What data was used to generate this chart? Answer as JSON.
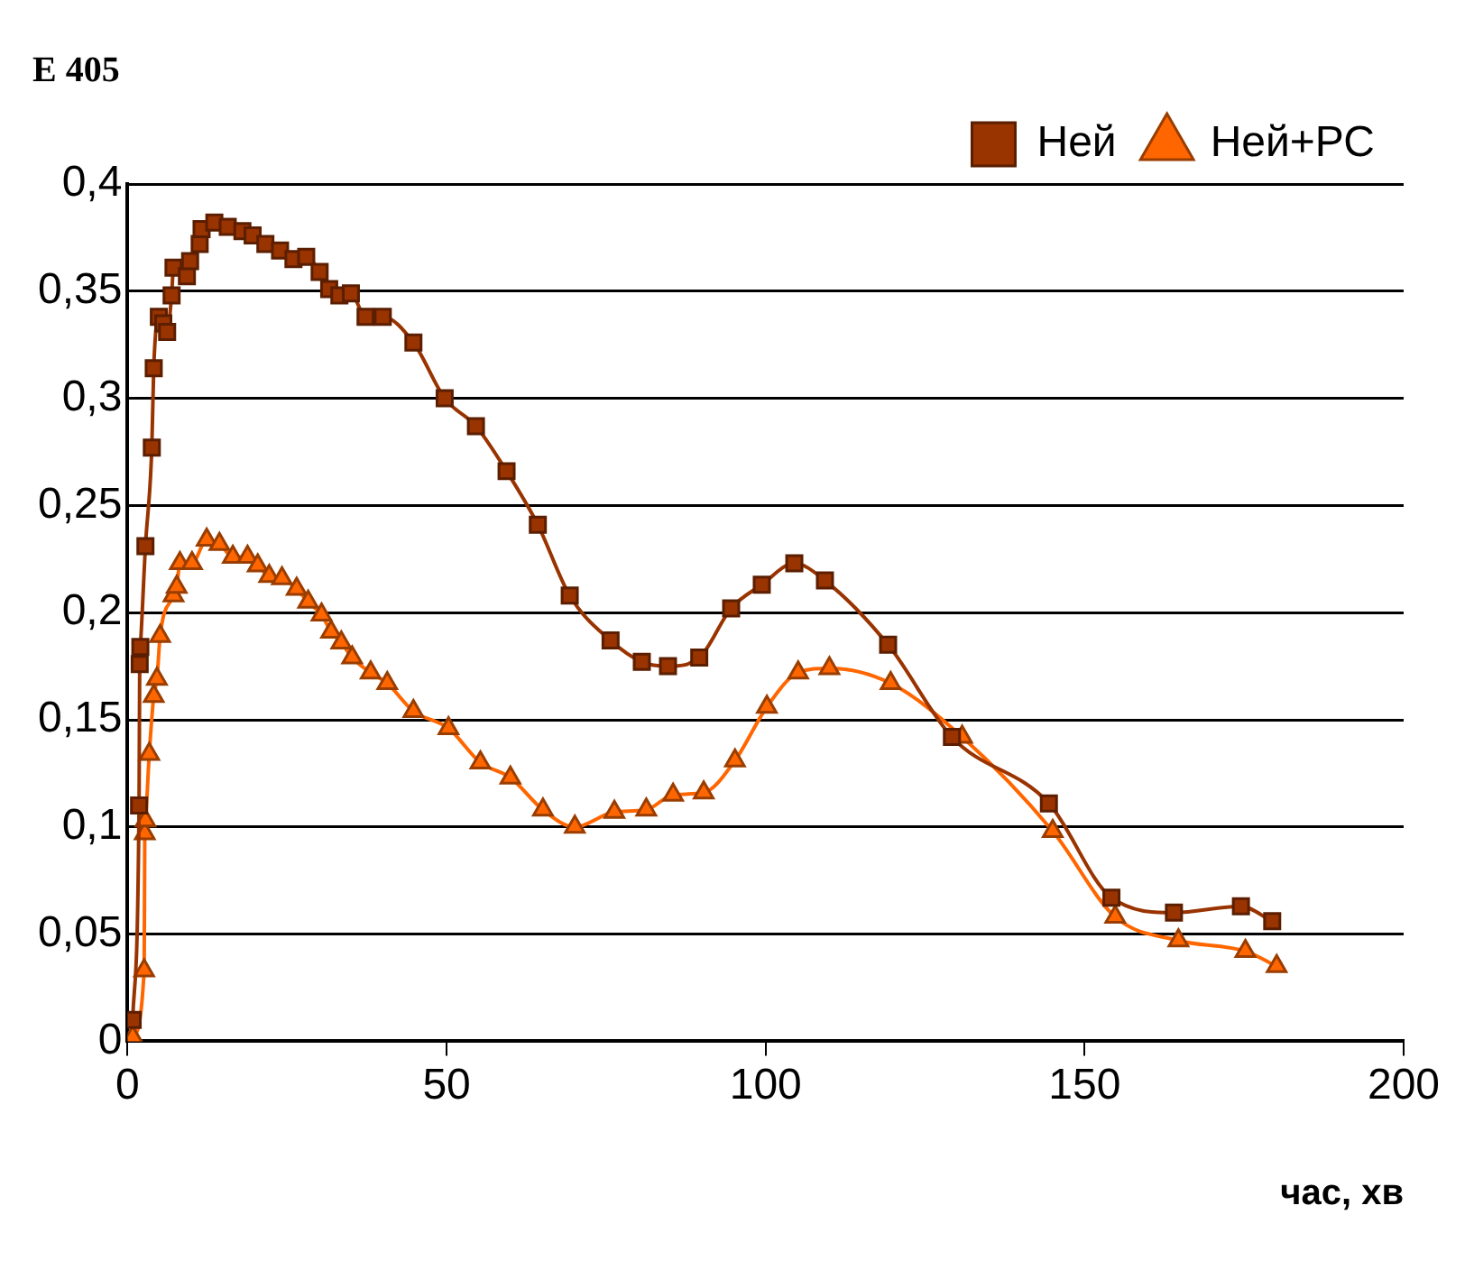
{
  "chart_data": {
    "type": "line",
    "title": "E 405",
    "xlabel": "час, хв",
    "xlim": [
      0,
      200
    ],
    "xticks": [
      0,
      50,
      100,
      150,
      200
    ],
    "ylim": [
      0,
      0.4
    ],
    "yticks": [
      {
        "value": 0,
        "label": "0"
      },
      {
        "value": 0.05,
        "label": "0,05"
      },
      {
        "value": 0.1,
        "label": "0,1"
      },
      {
        "value": 0.15,
        "label": "0,15"
      },
      {
        "value": 0.2,
        "label": "0,2"
      },
      {
        "value": 0.25,
        "label": "0,25"
      },
      {
        "value": 0.3,
        "label": "0,3"
      },
      {
        "value": 0.35,
        "label": "0,35"
      },
      {
        "value": 0.4,
        "label": "0,4"
      }
    ],
    "grid": "y",
    "legend": "top right",
    "series": [
      {
        "name": "Ней",
        "color": "#993300",
        "marker": "square",
        "x": [
          0.8,
          1.8,
          1.9,
          2.0,
          2.8,
          3.8,
          4.1,
          4.9,
          5.6,
          6.2,
          6.9,
          7.2,
          9.3,
          9.8,
          11.3,
          11.6,
          13.6,
          15.7,
          18,
          19.6,
          21.6,
          23.9,
          26,
          28,
          30.1,
          31.6,
          33.2,
          35,
          37.3,
          40,
          44.8,
          49.7,
          54.6,
          59.4,
          64.3,
          69.3,
          75.7,
          80.6,
          84.7,
          89.6,
          94.6,
          99.4,
          104.5,
          109.3,
          119.2,
          129.2,
          144.4,
          154.2,
          164,
          174.5,
          179.4
        ],
        "values": [
          0.01,
          0.11,
          0.176,
          0.184,
          0.231,
          0.277,
          0.314,
          0.338,
          0.335,
          0.331,
          0.348,
          0.361,
          0.357,
          0.364,
          0.372,
          0.379,
          0.382,
          0.38,
          0.378,
          0.376,
          0.372,
          0.369,
          0.365,
          0.366,
          0.359,
          0.351,
          0.348,
          0.349,
          0.338,
          0.338,
          0.326,
          0.3,
          0.287,
          0.266,
          0.241,
          0.208,
          0.187,
          0.177,
          0.175,
          0.179,
          0.202,
          0.213,
          0.223,
          0.215,
          0.185,
          0.142,
          0.111,
          0.067,
          0.06,
          0.063,
          0.056
        ]
      },
      {
        "name": "Ней+РС",
        "color": "#ff6600",
        "marker": "triangle",
        "x": [
          0.8,
          2.6,
          2.7,
          2.8,
          3.4,
          4.1,
          4.6,
          5.1,
          7.2,
          7.7,
          8.2,
          10.1,
          12.4,
          14.4,
          16.5,
          18.8,
          20.4,
          22.2,
          24.2,
          26.5,
          28.3,
          30.4,
          31.9,
          33.5,
          35.2,
          38.1,
          40.7,
          44.8,
          50.3,
          55.3,
          60,
          65.1,
          70.1,
          76.3,
          81.3,
          85.5,
          90.3,
          95.2,
          100.2,
          105.1,
          110,
          119.6,
          130.8,
          145,
          154.8,
          164.7,
          175.2,
          180.1
        ],
        "values": [
          0.002,
          0.033,
          0.097,
          0.103,
          0.134,
          0.161,
          0.169,
          0.189,
          0.208,
          0.212,
          0.223,
          0.223,
          0.234,
          0.232,
          0.226,
          0.226,
          0.222,
          0.217,
          0.216,
          0.211,
          0.205,
          0.199,
          0.191,
          0.186,
          0.179,
          0.172,
          0.167,
          0.154,
          0.146,
          0.13,
          0.123,
          0.108,
          0.1,
          0.107,
          0.108,
          0.115,
          0.116,
          0.131,
          0.156,
          0.172,
          0.174,
          0.167,
          0.142,
          0.098,
          0.058,
          0.047,
          0.042,
          0.035
        ]
      }
    ]
  }
}
